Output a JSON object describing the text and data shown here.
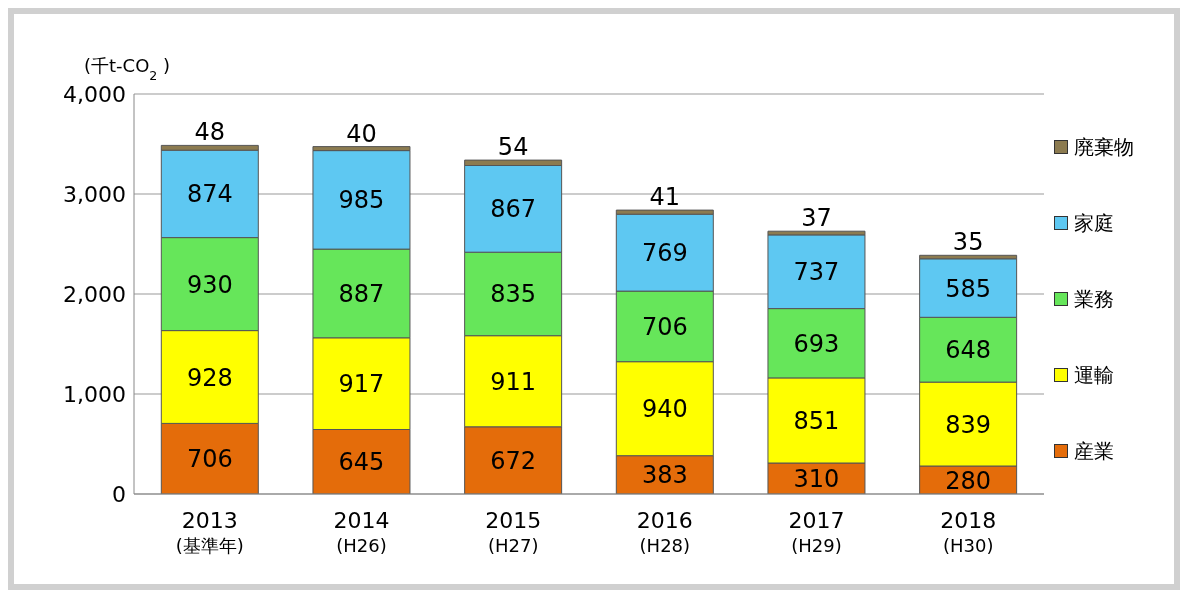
{
  "chart_data": {
    "type": "bar",
    "stacked": true,
    "ylabel": "(千t-CO$_{2}$)",
    "categories": [
      "2013\n(基準年)",
      "2014\n(H26)",
      "2015\n(H27)",
      "2016\n(H28)",
      "2017\n(H29)",
      "2018\n(H30)"
    ],
    "series": [
      {
        "name": "産業",
        "color": "#e46c0a",
        "values": [
          706,
          645,
          672,
          383,
          310,
          280
        ]
      },
      {
        "name": "運輸",
        "color": "#ffff00",
        "values": [
          928,
          917,
          911,
          940,
          851,
          839
        ]
      },
      {
        "name": "業務",
        "color": "#66e65a",
        "values": [
          930,
          887,
          835,
          706,
          693,
          648
        ]
      },
      {
        "name": "家庭",
        "color": "#5ec8f2",
        "values": [
          874,
          985,
          867,
          769,
          737,
          585
        ]
      },
      {
        "name": "廃棄物",
        "color": "#8c7b50",
        "values": [
          48,
          40,
          54,
          41,
          37,
          35
        ]
      }
    ],
    "ylim": [
      0,
      4000
    ],
    "yticks": [
      0,
      {
        "value": 1000,
        "label": "1,000"
      },
      {
        "value": 2000,
        "label": "2,000"
      },
      {
        "value": 3000,
        "label": "3,000"
      },
      {
        "value": 4000,
        "label": "4,000"
      }
    ],
    "grid": "y",
    "legend": "right",
    "data_labels": true
  }
}
